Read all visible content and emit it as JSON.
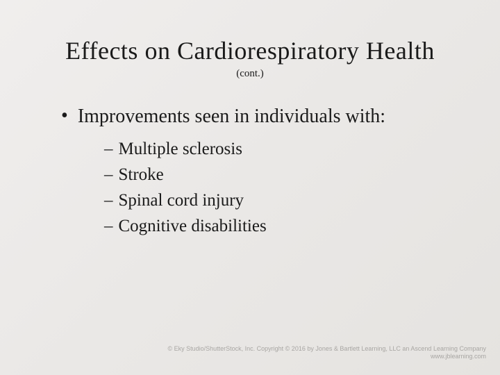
{
  "slide": {
    "title": "Effects on Cardiorespiratory Health",
    "subtitle": "(cont.)",
    "main_bullet": "Improvements seen in individuals with:",
    "sub_items": [
      "Multiple sclerosis",
      "Stroke",
      "Spinal cord injury",
      "Cognitive disabilities"
    ]
  },
  "footer": {
    "line1": "© Eky Studio/ShutterStock, Inc. Copyright © 2016 by Jones & Bartlett Learning, LLC an Ascend Learning Company",
    "line2": "www.jblearning.com"
  },
  "styling": {
    "background_gradient_start": "#f0eeed",
    "background_gradient_end": "#e5e3e0",
    "text_color": "#1a1a1a",
    "footer_color": "#a8a6a3",
    "title_fontsize": 36,
    "subtitle_fontsize": 15,
    "bullet_fontsize": 28,
    "subitem_fontsize": 25,
    "footer_fontsize": 9,
    "font_family_main": "Times New Roman",
    "font_family_footer": "Arial",
    "slide_width": 720,
    "slide_height": 540
  }
}
